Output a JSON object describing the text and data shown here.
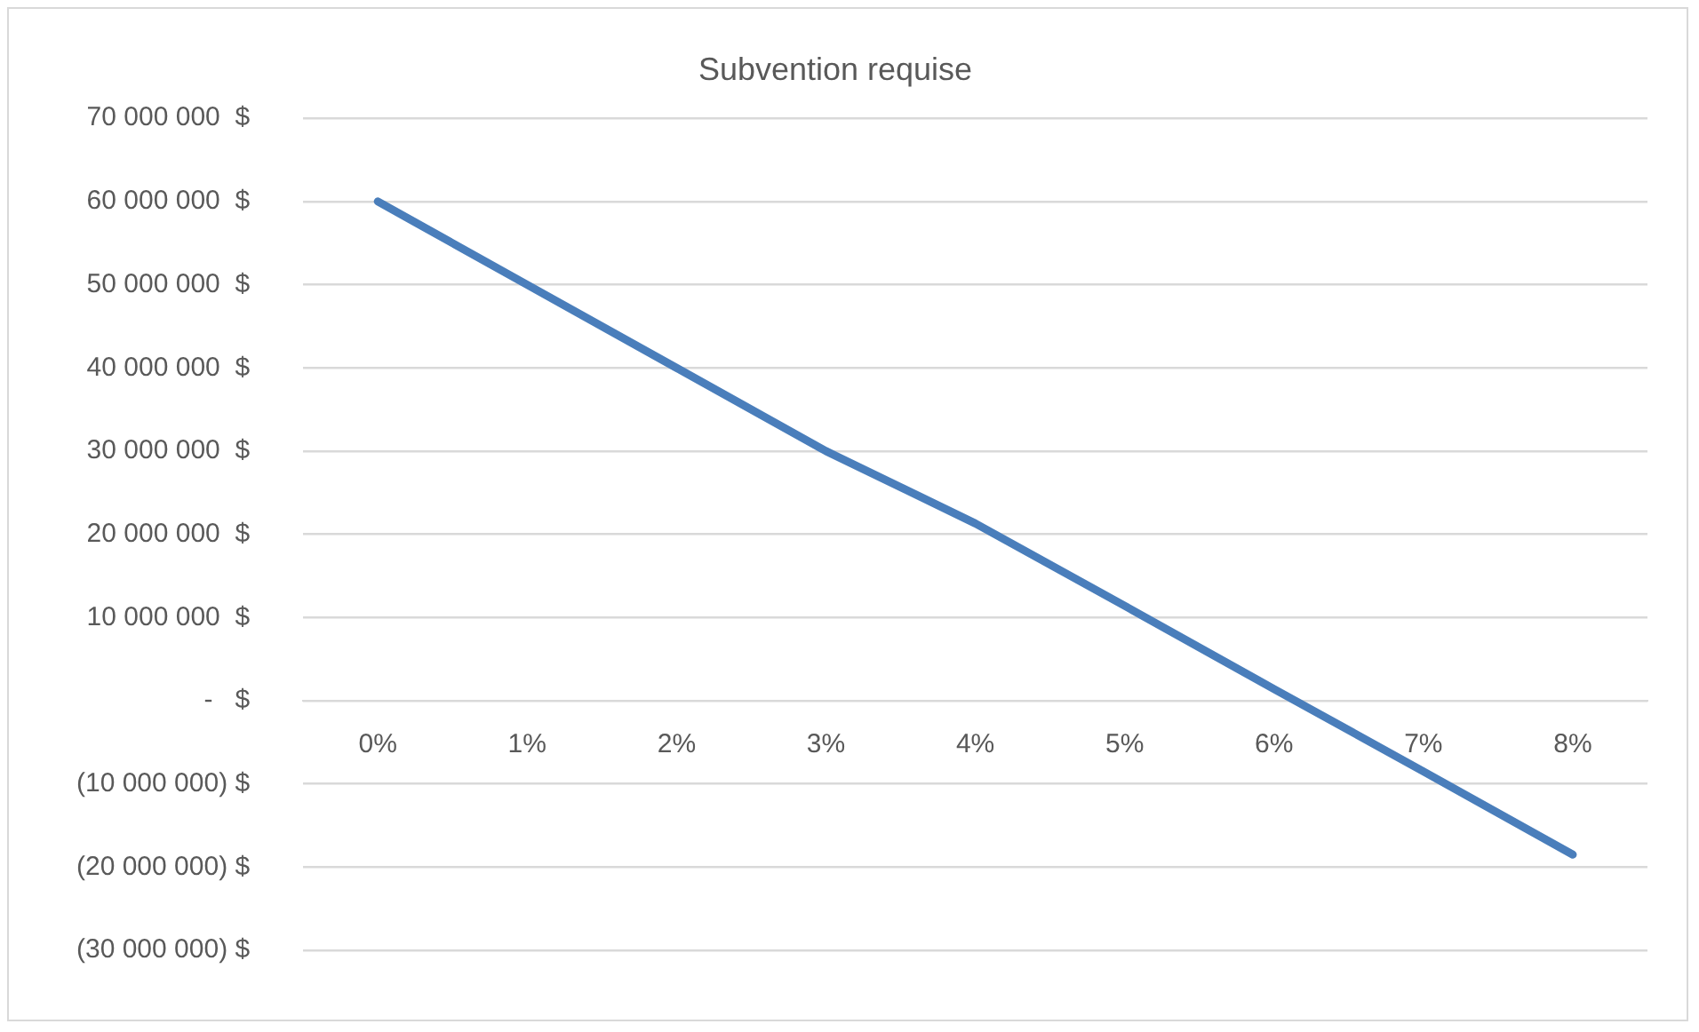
{
  "chart_data": {
    "type": "line",
    "title": "Subvention requise",
    "categories": [
      "0%",
      "1%",
      "2%",
      "3%",
      "4%",
      "5%",
      "6%",
      "7%",
      "8%"
    ],
    "series": [
      {
        "color": "#4a7ebb",
        "values": [
          60000000,
          50000000,
          40000000,
          30000000,
          21300000,
          11400000,
          1400000,
          -8500000,
          -18500000
        ]
      }
    ],
    "ylim": [
      -30000000,
      70000000
    ],
    "yticks": [
      {
        "value": -30000000,
        "label": "(30 000 000) $"
      },
      {
        "value": -20000000,
        "label": "(20 000 000) $"
      },
      {
        "value": -10000000,
        "label": "(10 000 000) $"
      },
      {
        "value": 0,
        "label": "-   $"
      },
      {
        "value": 10000000,
        "label": "10 000 000  $"
      },
      {
        "value": 20000000,
        "label": "20 000 000  $"
      },
      {
        "value": 30000000,
        "label": "30 000 000  $"
      },
      {
        "value": 40000000,
        "label": "40 000 000  $"
      },
      {
        "value": 50000000,
        "label": "50 000 000  $"
      },
      {
        "value": 60000000,
        "label": "60 000 000  $"
      },
      {
        "value": 70000000,
        "label": "70 000 000  $"
      }
    ],
    "grid": "y",
    "legend": false,
    "marker": "none",
    "line_style": "solid"
  }
}
